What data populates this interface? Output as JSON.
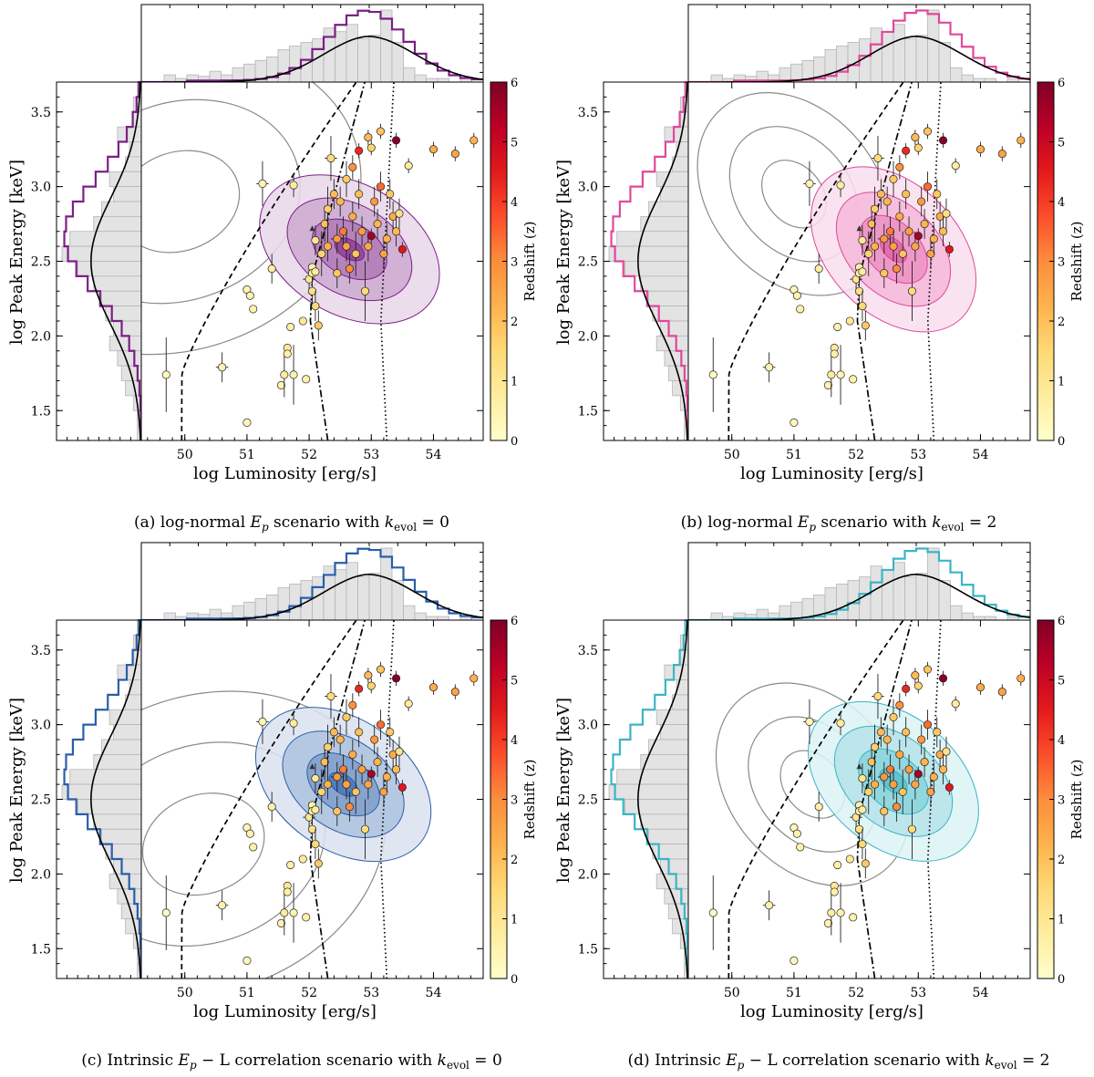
{
  "figure": {
    "x_axis_label": "log Luminosity [erg/s]",
    "y_axis_label": "log Peak Energy [keV]",
    "colorbar_label": "Redshift (z)",
    "colorbar_range": [
      0,
      6
    ],
    "colorbar_ticks": [
      "0",
      "1",
      "2",
      "3",
      "4",
      "5",
      "6"
    ],
    "x_ticks": [
      "50",
      "51",
      "52",
      "53",
      "54"
    ],
    "y_ticks": [
      "1.5",
      "2.0",
      "2.5",
      "3.0",
      "3.5"
    ],
    "colorbar_stops": [
      "#ffffcc",
      "#ffeda0",
      "#fed976",
      "#feb24c",
      "#fd8d3c",
      "#fc4e2a",
      "#e31a1c",
      "#bd0026",
      "#800026"
    ]
  },
  "chart_data": [
    {
      "type": "scatter",
      "title": "(a) log-normal Ep scenario with kevol = 0",
      "caption": {
        "prefix": "(a) log-normal ",
        "symbol": "E",
        "symbol_sub": "p",
        "middle": " scenario with ",
        "k": "k",
        "k_sub": "evol",
        "suffix": " = 0"
      },
      "accent": "#7b1f86",
      "xlim": [
        49.3,
        54.8
      ],
      "ylim": [
        1.3,
        3.7
      ],
      "gray_contour_center": [
        49.9,
        2.9
      ],
      "gray_contour_shape": "open-left",
      "model_contour_center": [
        52.65,
        2.58
      ],
      "model_contour_angle_deg": 60
    },
    {
      "type": "scatter",
      "title": "(b) log-normal Ep scenario with kevol = 2",
      "caption": {
        "prefix": "(b) log-normal ",
        "symbol": "E",
        "symbol_sub": "p",
        "middle": " scenario with ",
        "k": "k",
        "k_sub": "evol",
        "suffix": " = 2"
      },
      "accent": "#e0489b",
      "xlim": [
        49.3,
        54.8
      ],
      "ylim": [
        1.3,
        3.7
      ],
      "gray_contour_center": [
        51.0,
        2.95
      ],
      "gray_contour_shape": "closed",
      "model_contour_center": [
        52.6,
        2.58
      ],
      "model_contour_angle_deg": 45
    },
    {
      "type": "scatter",
      "title": "(c) Intrinsic Ep - L correlation scenario with kevol = 0",
      "caption": {
        "prefix": "(c) Intrinsic ",
        "symbol": "E",
        "symbol_sub": "p",
        "middle": " − L correlation scenario with ",
        "k": "k",
        "k_sub": "evol",
        "suffix": " = 0"
      },
      "accent": "#2a5ea8",
      "xlim": [
        49.3,
        54.8
      ],
      "ylim": [
        1.3,
        3.7
      ],
      "gray_contour_center": [
        50.3,
        2.2
      ],
      "gray_contour_shape": "open-left",
      "model_contour_center": [
        52.55,
        2.6
      ],
      "model_contour_angle_deg": 55
    },
    {
      "type": "scatter",
      "title": "(d) Intrinsic Ep - L correlation scenario with kevol = 2",
      "caption": {
        "prefix": "(d) Intrinsic ",
        "symbol": "E",
        "symbol_sub": "p",
        "middle": " − L correlation scenario with ",
        "k": "k",
        "k_sub": "evol",
        "suffix": " = 2"
      },
      "accent": "#3bb5c4",
      "xlim": [
        49.3,
        54.8
      ],
      "ylim": [
        1.3,
        3.7
      ],
      "gray_contour_center": [
        51.3,
        2.6
      ],
      "gray_contour_shape": "closed",
      "model_contour_center": [
        52.6,
        2.62
      ],
      "model_contour_angle_deg": 50
    }
  ],
  "grb_points": [
    {
      "x": 49.7,
      "y": 1.74,
      "z": 0.2,
      "ex": 0.05,
      "ey": 0.25
    },
    {
      "x": 50.6,
      "y": 1.79,
      "z": 0.5,
      "ex": 0.1,
      "ey": 0.1
    },
    {
      "x": 51.0,
      "y": 1.42,
      "z": 0.3,
      "ex": 0.0,
      "ey": 0.0
    },
    {
      "x": 51.0,
      "y": 2.31,
      "z": 0.4,
      "ex": 0.0,
      "ey": 0.0
    },
    {
      "x": 51.05,
      "y": 2.27,
      "z": 0.5,
      "ex": 0.0,
      "ey": 0.0
    },
    {
      "x": 51.1,
      "y": 2.18,
      "z": 0.6,
      "ex": 0.0,
      "ey": 0.0
    },
    {
      "x": 51.25,
      "y": 3.02,
      "z": 0.4,
      "ex": 0.1,
      "ey": 0.15
    },
    {
      "x": 51.4,
      "y": 2.45,
      "z": 0.7,
      "ex": 0.0,
      "ey": 0.1
    },
    {
      "x": 51.55,
      "y": 1.67,
      "z": 0.5,
      "ex": 0.0,
      "ey": 0.0
    },
    {
      "x": 51.6,
      "y": 1.74,
      "z": 0.8,
      "ex": 0.05,
      "ey": 0.15
    },
    {
      "x": 51.65,
      "y": 1.92,
      "z": 0.9,
      "ex": 0.0,
      "ey": 0.0
    },
    {
      "x": 51.65,
      "y": 1.88,
      "z": 0.7,
      "ex": 0.0,
      "ey": 0.0
    },
    {
      "x": 51.7,
      "y": 2.06,
      "z": 0.6,
      "ex": 0.0,
      "ey": 0.0
    },
    {
      "x": 51.75,
      "y": 1.74,
      "z": 0.5,
      "ex": 0.05,
      "ey": 0.2
    },
    {
      "x": 51.75,
      "y": 3.01,
      "z": 0.8,
      "ex": 0.0,
      "ey": 0.08
    },
    {
      "x": 51.9,
      "y": 2.1,
      "z": 0.9,
      "ex": 0.0,
      "ey": 0.0
    },
    {
      "x": 51.95,
      "y": 1.71,
      "z": 0.6,
      "ex": 0.0,
      "ey": 0.0
    },
    {
      "x": 52.0,
      "y": 2.38,
      "z": 1.0,
      "ex": 0.1,
      "ey": 0.1
    },
    {
      "x": 52.05,
      "y": 2.46,
      "z": 0.5,
      "ex": 0.05,
      "ey": 0.0
    },
    {
      "x": 52.05,
      "y": 2.42,
      "z": 0.6,
      "ex": 0.05,
      "ey": 0.0
    },
    {
      "x": 52.1,
      "y": 2.43,
      "z": 0.8,
      "ex": 0.0,
      "ey": 0.0
    },
    {
      "x": 52.05,
      "y": 2.3,
      "z": 1.2,
      "ex": 0.05,
      "ey": 0.1
    },
    {
      "x": 52.1,
      "y": 2.2,
      "z": 1.5,
      "ex": 0.0,
      "ey": 0.1
    },
    {
      "x": 52.15,
      "y": 2.07,
      "z": 1.8,
      "ex": 0.0,
      "ey": 0.1
    },
    {
      "x": 52.1,
      "y": 2.64,
      "z": 1.0,
      "ex": 0.05,
      "ey": 0.1
    },
    {
      "x": 52.2,
      "y": 2.55,
      "z": 1.6,
      "ex": 0.05,
      "ey": 0.15
    },
    {
      "x": 52.25,
      "y": 2.75,
      "z": 2.0,
      "ex": 0.05,
      "ey": 0.12
    },
    {
      "x": 52.3,
      "y": 2.6,
      "z": 2.3,
      "ex": 0.05,
      "ey": 0.1
    },
    {
      "x": 52.3,
      "y": 2.85,
      "z": 1.7,
      "ex": 0.0,
      "ey": 0.15
    },
    {
      "x": 52.35,
      "y": 3.19,
      "z": 1.4,
      "ex": 0.1,
      "ey": 0.15
    },
    {
      "x": 52.4,
      "y": 2.95,
      "z": 2.1,
      "ex": 0.05,
      "ey": 0.1
    },
    {
      "x": 52.45,
      "y": 2.42,
      "z": 1.9,
      "ex": 0.0,
      "ey": 0.1
    },
    {
      "x": 52.45,
      "y": 2.65,
      "z": 2.8,
      "ex": 0.1,
      "ey": 0.1
    },
    {
      "x": 52.5,
      "y": 2.9,
      "z": 2.2,
      "ex": 0.05,
      "ey": 0.1
    },
    {
      "x": 52.55,
      "y": 2.7,
      "z": 3.2,
      "ex": 0.05,
      "ey": 0.1
    },
    {
      "x": 52.6,
      "y": 2.6,
      "z": 2.6,
      "ex": 0.05,
      "ey": 0.1
    },
    {
      "x": 52.6,
      "y": 3.05,
      "z": 1.8,
      "ex": 0.05,
      "ey": 0.12
    },
    {
      "x": 52.65,
      "y": 2.45,
      "z": 3.0,
      "ex": 0.05,
      "ey": 0.1
    },
    {
      "x": 52.7,
      "y": 2.8,
      "z": 2.4,
      "ex": 0.05,
      "ey": 0.1
    },
    {
      "x": 52.7,
      "y": 3.13,
      "z": 2.9,
      "ex": 0.05,
      "ey": 0.08
    },
    {
      "x": 52.75,
      "y": 2.55,
      "z": 1.9,
      "ex": 0.05,
      "ey": 0.15
    },
    {
      "x": 52.8,
      "y": 3.24,
      "z": 4.3,
      "ex": 0.05,
      "ey": 0.05
    },
    {
      "x": 52.8,
      "y": 2.95,
      "z": 2.0,
      "ex": 0.05,
      "ey": 0.1
    },
    {
      "x": 52.85,
      "y": 2.7,
      "z": 2.7,
      "ex": 0.05,
      "ey": 0.1
    },
    {
      "x": 52.9,
      "y": 2.3,
      "z": 1.4,
      "ex": 0.05,
      "ey": 0.2
    },
    {
      "x": 52.95,
      "y": 2.6,
      "z": 2.5,
      "ex": 0.05,
      "ey": 0.1
    },
    {
      "x": 52.95,
      "y": 3.33,
      "z": 2.1,
      "ex": 0.05,
      "ey": 0.05
    },
    {
      "x": 53.0,
      "y": 3.26,
      "z": 1.6,
      "ex": 0.05,
      "ey": 0.05
    },
    {
      "x": 53.0,
      "y": 2.67,
      "z": 5.5,
      "ex": 0.05,
      "ey": 0.05
    },
    {
      "x": 53.05,
      "y": 2.9,
      "z": 2.8,
      "ex": 0.05,
      "ey": 0.1
    },
    {
      "x": 53.1,
      "y": 2.75,
      "z": 2.2,
      "ex": 0.05,
      "ey": 0.1
    },
    {
      "x": 53.15,
      "y": 3.0,
      "z": 3.4,
      "ex": 0.05,
      "ey": 0.1
    },
    {
      "x": 53.15,
      "y": 3.37,
      "z": 1.9,
      "ex": 0.05,
      "ey": 0.05
    },
    {
      "x": 53.2,
      "y": 2.55,
      "z": 2.6,
      "ex": 0.05,
      "ey": 0.1
    },
    {
      "x": 53.25,
      "y": 2.65,
      "z": 2.3,
      "ex": 0.05,
      "ey": 0.1
    },
    {
      "x": 53.3,
      "y": 2.95,
      "z": 1.8,
      "ex": 0.05,
      "ey": 0.1
    },
    {
      "x": 53.35,
      "y": 2.8,
      "z": 2.4,
      "ex": 0.05,
      "ey": 0.1
    },
    {
      "x": 53.4,
      "y": 3.31,
      "z": 5.9,
      "ex": 0.05,
      "ey": 0.05
    },
    {
      "x": 53.4,
      "y": 2.7,
      "z": 2.1,
      "ex": 0.05,
      "ey": 0.1
    },
    {
      "x": 53.45,
      "y": 2.82,
      "z": 1.2,
      "ex": 0.05,
      "ey": 0.1
    },
    {
      "x": 53.5,
      "y": 2.58,
      "z": 4.6,
      "ex": 0.05,
      "ey": 0.05
    },
    {
      "x": 53.6,
      "y": 3.14,
      "z": 0.8,
      "ex": 0.05,
      "ey": 0.05
    },
    {
      "x": 54.0,
      "y": 3.25,
      "z": 2.4,
      "ex": 0.05,
      "ey": 0.05
    },
    {
      "x": 54.35,
      "y": 3.22,
      "z": 2.6,
      "ex": 0.05,
      "ey": 0.05
    },
    {
      "x": 54.65,
      "y": 3.31,
      "z": 2.3,
      "ex": 0.05,
      "ey": 0.05
    }
  ],
  "lum_hist": [
    0,
    0,
    0.1,
    0.05,
    0.1,
    0.08,
    0.15,
    0.1,
    0.2,
    0.25,
    0.3,
    0.35,
    0.45,
    0.5,
    0.55,
    0.6,
    0.75,
    0.7,
    0.8,
    0.6,
    0.65,
    1.0,
    0.55,
    0.2,
    0.1,
    0.05,
    0.05,
    0,
    0.05,
    0
  ],
  "ep_hist": [
    0.05,
    0.1,
    0.1,
    0.3,
    0.15,
    0.2,
    0.4,
    0.35,
    0.5,
    0.6,
    0.9,
    1.0,
    0.8,
    0.6,
    0.5,
    0.45,
    0.35,
    0.4,
    0.3,
    0.25,
    0.2,
    0.1,
    0.05,
    0.05
  ]
}
